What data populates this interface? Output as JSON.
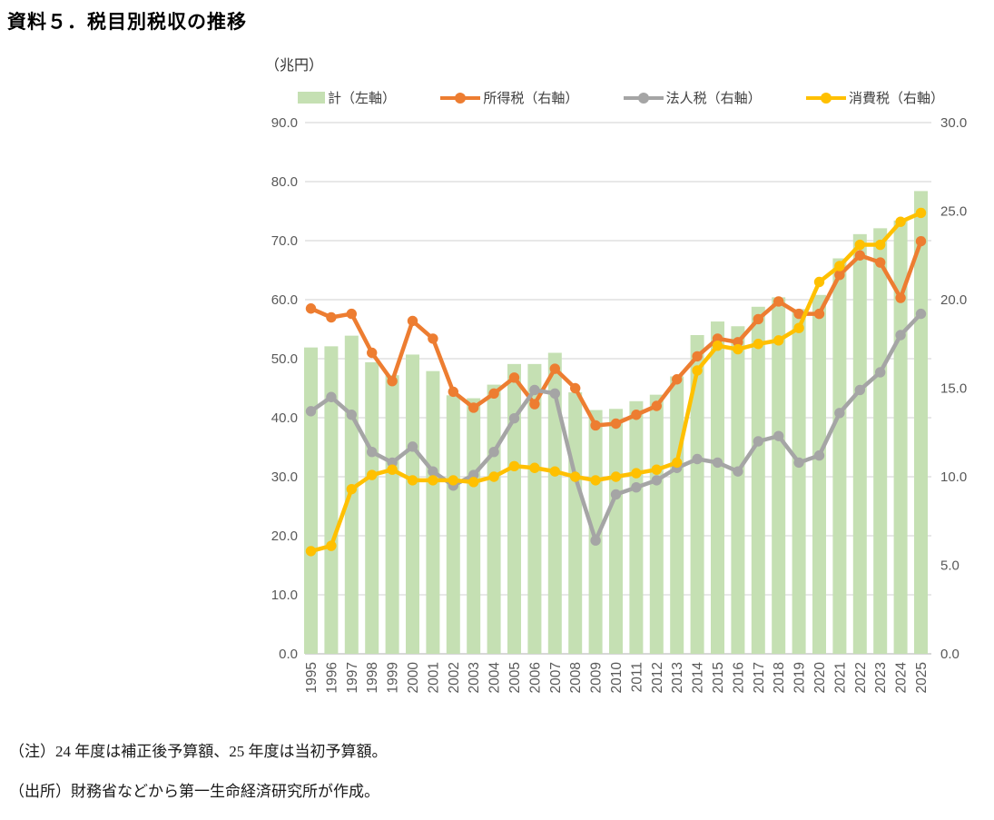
{
  "title": "資料５．税目別税収の推移",
  "unit_label": "（兆円）",
  "legend": [
    {
      "key": "total",
      "label": "計（左軸）",
      "type": "bar",
      "color": "#c5e0b3"
    },
    {
      "key": "income-tax",
      "label": "所得税（右軸）",
      "type": "line",
      "color": "#ed7d31"
    },
    {
      "key": "corporate-tax",
      "label": "法人税（右軸）",
      "type": "line",
      "color": "#a5a5a5"
    },
    {
      "key": "consumption-tax",
      "label": "消費税（右軸）",
      "type": "line",
      "color": "#ffc000"
    }
  ],
  "axes": {
    "left": {
      "ticks": [
        "90.0",
        "80.0",
        "70.0",
        "60.0",
        "50.0",
        "40.0",
        "30.0",
        "20.0",
        "10.0",
        "0.0"
      ]
    },
    "right": {
      "ticks": [
        "30.0",
        "25.0",
        "20.0",
        "15.0",
        "10.0",
        "5.0",
        "0.0"
      ]
    }
  },
  "chart_data": {
    "type": "combo-bar-line",
    "title": "資料５．税目別税収の推移",
    "unit": "兆円",
    "categories": [
      "1995",
      "1996",
      "1997",
      "1998",
      "1999",
      "2000",
      "2001",
      "2002",
      "2003",
      "2004",
      "2005",
      "2006",
      "2007",
      "2008",
      "2009",
      "2010",
      "2011",
      "2012",
      "2013",
      "2014",
      "2015",
      "2016",
      "2017",
      "2018",
      "2019",
      "2020",
      "2021",
      "2022",
      "2023",
      "2024",
      "2025"
    ],
    "bar_series": {
      "key": "total",
      "name": "計（左軸）",
      "axis": "left",
      "color": "#c5e0b3",
      "values": [
        51.9,
        52.1,
        53.9,
        49.4,
        47.2,
        50.7,
        47.9,
        43.8,
        43.3,
        45.6,
        49.1,
        49.1,
        51.0,
        44.3,
        41.3,
        41.5,
        42.8,
        43.9,
        47.0,
        54.0,
        56.3,
        55.5,
        58.8,
        60.4,
        58.4,
        60.8,
        67.0,
        71.1,
        72.1,
        73.4,
        78.4
      ]
    },
    "line_series": [
      {
        "key": "income-tax",
        "name": "所得税（右軸）",
        "axis": "right",
        "color": "#ed7d31",
        "values": [
          19.5,
          19.0,
          19.2,
          17.0,
          15.4,
          18.8,
          17.8,
          14.8,
          13.9,
          14.7,
          15.6,
          14.1,
          16.1,
          15.0,
          12.9,
          13.0,
          13.5,
          14.0,
          15.5,
          16.8,
          17.8,
          17.6,
          18.9,
          19.9,
          19.2,
          19.2,
          21.4,
          22.5,
          22.1,
          20.1,
          23.3
        ]
      },
      {
        "key": "corporate-tax",
        "name": "法人税（右軸）",
        "axis": "right",
        "color": "#a5a5a5",
        "values": [
          13.7,
          14.5,
          13.5,
          11.4,
          10.8,
          11.7,
          10.3,
          9.5,
          10.1,
          11.4,
          13.3,
          14.9,
          14.7,
          10.0,
          6.4,
          9.0,
          9.4,
          9.8,
          10.5,
          11.0,
          10.8,
          10.3,
          12.0,
          12.3,
          10.8,
          11.2,
          13.6,
          14.9,
          15.9,
          18.0,
          19.2
        ]
      },
      {
        "key": "consumption-tax",
        "name": "消費税（右軸）",
        "axis": "right",
        "color": "#ffc000",
        "values": [
          5.8,
          6.1,
          9.3,
          10.1,
          10.4,
          9.8,
          9.8,
          9.8,
          9.7,
          10.0,
          10.6,
          10.5,
          10.3,
          10.0,
          9.8,
          10.0,
          10.2,
          10.4,
          10.8,
          16.0,
          17.4,
          17.2,
          17.5,
          17.7,
          18.4,
          21.0,
          21.9,
          23.1,
          23.1,
          24.4,
          24.9
        ]
      }
    ],
    "left_axis": {
      "min": 0,
      "max": 90,
      "step": 10,
      "label": "（兆円）"
    },
    "right_axis": {
      "min": 0,
      "max": 30,
      "step": 5
    },
    "grid": true,
    "legend_position": "top"
  },
  "notes": {
    "note": "（注）24 年度は補正後予算額、25 年度は当初予算額。",
    "source": "（出所）財務省などから第一生命経済研究所が作成。"
  },
  "colors": {
    "grid": "#d9d9d9",
    "zero_line": "#bfbfbf",
    "axis_text": "#595959"
  }
}
